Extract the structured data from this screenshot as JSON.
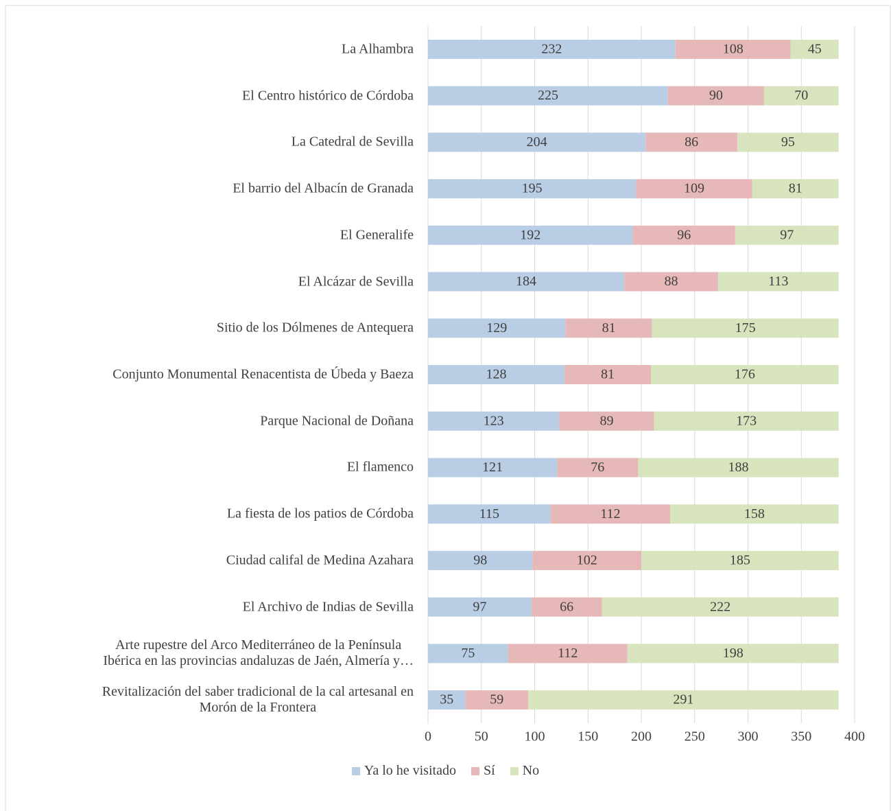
{
  "chart_data": {
    "type": "stacked-bar-horizontal",
    "categories": [
      "La Alhambra",
      "El Centro histórico de Córdoba",
      "La Catedral de Sevilla",
      "El barrio del Albacín de Granada",
      "El Generalife",
      "El Alcázar de Sevilla",
      "Sitio de los Dólmenes de Antequera",
      "Conjunto Monumental Renacentista de Úbeda y Baeza",
      "Parque Nacional de Doñana",
      "El flamenco",
      "La fiesta de los patios de Córdoba",
      "Ciudad califal de Medina Azahara",
      "El Archivo de Indias de Sevilla",
      "Arte rupestre del Arco Mediterráneo de la Península\nIbérica en las provincias andaluzas de Jaén, Almería y…",
      "Revitalización del saber tradicional de la cal artesanal en\nMorón de la Frontera"
    ],
    "series": [
      {
        "name": "Ya lo he visitado",
        "color": "#b9cde5",
        "values": [
          232,
          225,
          204,
          195,
          192,
          184,
          129,
          128,
          123,
          121,
          115,
          98,
          97,
          75,
          35
        ]
      },
      {
        "name": "Sí",
        "color": "#e6b9b8",
        "values": [
          108,
          90,
          86,
          109,
          96,
          88,
          81,
          81,
          89,
          76,
          112,
          102,
          66,
          112,
          59
        ]
      },
      {
        "name": "No",
        "color": "#d7e4bd",
        "values": [
          45,
          70,
          95,
          81,
          97,
          113,
          175,
          176,
          173,
          188,
          158,
          185,
          222,
          198,
          291
        ]
      }
    ],
    "xlim": [
      0,
      400
    ],
    "xticks": [
      0,
      50,
      100,
      150,
      200,
      250,
      300,
      350,
      400
    ],
    "grid": true,
    "legend": "bottom"
  }
}
